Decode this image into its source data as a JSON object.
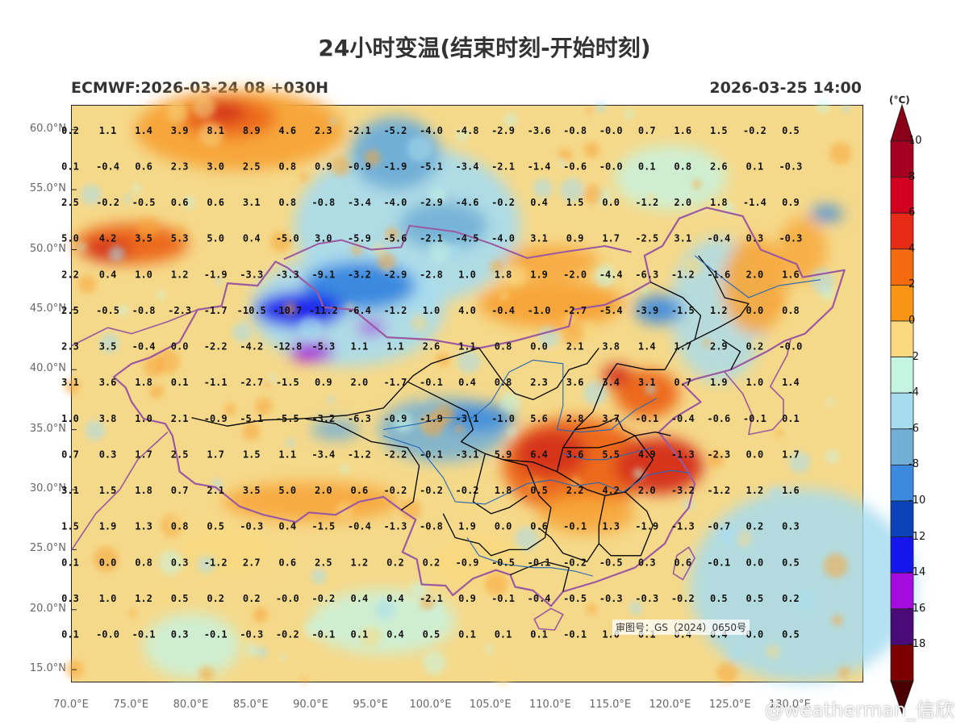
{
  "title": "24小时变温(结束时刻-开始时刻)",
  "subtitle_left": "ECMWF:2026-03-24 08 +030H",
  "subtitle_right": "2026-03-25 14:00",
  "copyright": "审图号：GS（2024）0650号",
  "watermark": "@weatherman_信欣",
  "y_ticks": [
    "60.0°N",
    "55.0°N",
    "50.0°N",
    "45.0°N",
    "40.0°N",
    "35.0°N",
    "30.0°N",
    "25.0°N",
    "20.0°N",
    "15.0°N"
  ],
  "x_ticks": [
    "70.0°E",
    "75.0°E",
    "80.0°E",
    "85.0°E",
    "90.0°E",
    "95.0°E",
    "100.0°E",
    "105.0°E",
    "110.0°E",
    "115.0°E",
    "120.0°E",
    "125.0°E",
    "130.0°E"
  ],
  "colorbar": {
    "unit": "(°C)",
    "labels": [
      "10",
      "8",
      "6",
      "4",
      "2",
      "0",
      "-2",
      "-4",
      "-6",
      "-8",
      "-10",
      "-12",
      "-14",
      "-16",
      "-18"
    ],
    "colors": [
      "#a5001f",
      "#d40020",
      "#e72a13",
      "#f46a0e",
      "#f99515",
      "#fcd880",
      "#c6f4e3",
      "#a7dcef",
      "#72afd6",
      "#3b8ae0",
      "#0a43b8",
      "#1515ee",
      "#a30bde",
      "#4a0a78",
      "#7d0000"
    ]
  },
  "map": {
    "lon_range": [
      70,
      136
    ],
    "lat_range": [
      14,
      62
    ],
    "rows": [
      {
        "lat": 60,
        "values": [
          "0.2",
          "1.1",
          "1.4",
          "3.9",
          "8.1",
          "8.9",
          "4.6",
          "2.3",
          "-2.1",
          "-5.2",
          "-4.0",
          "-4.8",
          "-2.9",
          "-3.6",
          "-0.8",
          "-0.0",
          "0.7",
          "1.6",
          "1.5",
          "-0.2",
          "0.5"
        ]
      },
      {
        "lat": 57,
        "values": [
          "0.1",
          "-0.4",
          "0.6",
          "2.3",
          "3.0",
          "2.5",
          "0.8",
          "0.9",
          "-0.9",
          "-1.9",
          "-5.1",
          "-3.4",
          "-2.1",
          "-1.4",
          "-0.6",
          "-0.0",
          "0.1",
          "0.8",
          "2.6",
          "0.1",
          "-0.3"
        ]
      },
      {
        "lat": 54,
        "values": [
          "2.5",
          "-0.2",
          "-0.5",
          "0.6",
          "0.6",
          "3.1",
          "0.8",
          "-0.8",
          "-3.4",
          "-4.0",
          "-2.9",
          "-4.6",
          "-0.2",
          "0.4",
          "1.5",
          "0.0",
          "-1.2",
          "2.0",
          "1.8",
          "-1.4",
          "0.9"
        ]
      },
      {
        "lat": 51,
        "values": [
          "5.0",
          "4.2",
          "3.5",
          "5.3",
          "5.0",
          "0.4",
          "-5.0",
          "3.0",
          "-5.9",
          "-5.6",
          "-2.1",
          "-4.5",
          "-4.0",
          "3.1",
          "0.9",
          "1.7",
          "-2.5",
          "3.1",
          "-0.4",
          "0.3",
          "-0.3"
        ]
      },
      {
        "lat": 48,
        "values": [
          "2.2",
          "0.4",
          "1.0",
          "1.2",
          "-1.9",
          "-3.3",
          "-3.3",
          "-9.1",
          "-3.2",
          "-2.9",
          "-2.8",
          "1.0",
          "1.8",
          "1.9",
          "-2.0",
          "-4.4",
          "-6.3",
          "-1.2",
          "-1.6",
          "2.0",
          "1.6"
        ]
      },
      {
        "lat": 45,
        "values": [
          "2.5",
          "-0.5",
          "-0.8",
          "-2.3",
          "-1.7",
          "-10.5",
          "-10.7",
          "-11.2",
          "-6.4",
          "-1.2",
          "1.0",
          "4.0",
          "-0.4",
          "-1.0",
          "-2.7",
          "-5.4",
          "-3.9",
          "-1.5",
          "1.2",
          "0.0",
          "0.8"
        ]
      },
      {
        "lat": 42,
        "values": [
          "2.3",
          "3.5",
          "-0.4",
          "0.0",
          "-2.2",
          "-4.2",
          "-12.8",
          "-5.3",
          "1.1",
          "1.1",
          "2.6",
          "1.1",
          "0.8",
          "0.0",
          "2.1",
          "3.8",
          "1.4",
          "1.7",
          "2.9",
          "0.2",
          "-0.0"
        ]
      },
      {
        "lat": 39,
        "values": [
          "3.1",
          "3.6",
          "1.8",
          "0.1",
          "-1.1",
          "-2.7",
          "-1.5",
          "0.9",
          "2.0",
          "-1.7",
          "-0.1",
          "0.4",
          "0.8",
          "2.3",
          "3.6",
          "3.4",
          "3.1",
          "0.7",
          "1.9",
          "1.0",
          "1.4"
        ]
      },
      {
        "lat": 36,
        "values": [
          "1.0",
          "3.8",
          "1.0",
          "2.1",
          "-0.9",
          "-5.1",
          "-5.5",
          "-3.2",
          "-6.3",
          "-0.9",
          "-1.9",
          "-3.1",
          "-1.0",
          "5.6",
          "2.8",
          "3.7",
          "-0.1",
          "-0.4",
          "-0.6",
          "-0.1",
          "0.1"
        ]
      },
      {
        "lat": 33,
        "values": [
          "0.7",
          "0.3",
          "1.7",
          "2.5",
          "1.7",
          "1.5",
          "1.1",
          "-3.4",
          "-1.2",
          "-2.2",
          "-0.1",
          "-3.1",
          "5.9",
          "6.4",
          "3.6",
          "5.5",
          "4.9",
          "-1.3",
          "-2.3",
          "0.0",
          "1.7"
        ]
      },
      {
        "lat": 30,
        "values": [
          "3.1",
          "1.5",
          "1.8",
          "0.7",
          "2.1",
          "3.5",
          "5.0",
          "2.0",
          "0.6",
          "-0.2",
          "-0.2",
          "-0.2",
          "1.8",
          "0.5",
          "2.2",
          "4.2",
          "2.0",
          "-3.2",
          "-1.2",
          "1.2",
          "1.6"
        ]
      },
      {
        "lat": 27,
        "values": [
          "1.5",
          "1.9",
          "1.3",
          "0.8",
          "0.5",
          "-0.3",
          "0.4",
          "-1.5",
          "-0.4",
          "-1.3",
          "-0.8",
          "1.9",
          "0.0",
          "0.6",
          "-0.1",
          "1.3",
          "-1.9",
          "-1.3",
          "-0.7",
          "0.2",
          "0.3"
        ]
      },
      {
        "lat": 24,
        "values": [
          "0.1",
          "0.0",
          "0.8",
          "0.3",
          "-1.2",
          "2.7",
          "0.6",
          "2.5",
          "1.2",
          "0.2",
          "0.2",
          "-0.9",
          "-0.5",
          "-0.1",
          "-0.2",
          "-0.5",
          "0.3",
          "0.6",
          "-0.1",
          "0.0",
          "0.5"
        ]
      },
      {
        "lat": 21,
        "values": [
          "0.3",
          "1.0",
          "1.2",
          "0.5",
          "0.2",
          "0.2",
          "-0.0",
          "-0.2",
          "0.4",
          "0.4",
          "-2.1",
          "0.9",
          "-0.1",
          "-0.4",
          "-0.5",
          "-0.3",
          "-0.3",
          "-0.2",
          "0.5",
          "0.5",
          "0.2"
        ]
      },
      {
        "lat": 18,
        "values": [
          "0.1",
          "-0.0",
          "-0.1",
          "0.3",
          "-0.1",
          "-0.3",
          "-0.2",
          "-0.1",
          "0.1",
          "0.4",
          "0.5",
          "0.1",
          "0.1",
          "0.1",
          "-0.1",
          "1.0",
          "0.1",
          "0.4",
          "0.4",
          "0.0",
          "0.5"
        ]
      }
    ]
  },
  "region_colors": {
    "warm_light": "#f8d982",
    "warm": "#f7a63a",
    "hot": "#ec6a1c",
    "very_hot": "#d6341c",
    "neutral": "#c6f4e3",
    "cool": "#a7dcef",
    "cold": "#72afd6",
    "colder": "#3b8ae0",
    "coldest": "#1515ee",
    "extreme_cold": "#a30bde",
    "border_country": "#9b59a0",
    "border_province": "#000000",
    "river": "#2466b5"
  }
}
